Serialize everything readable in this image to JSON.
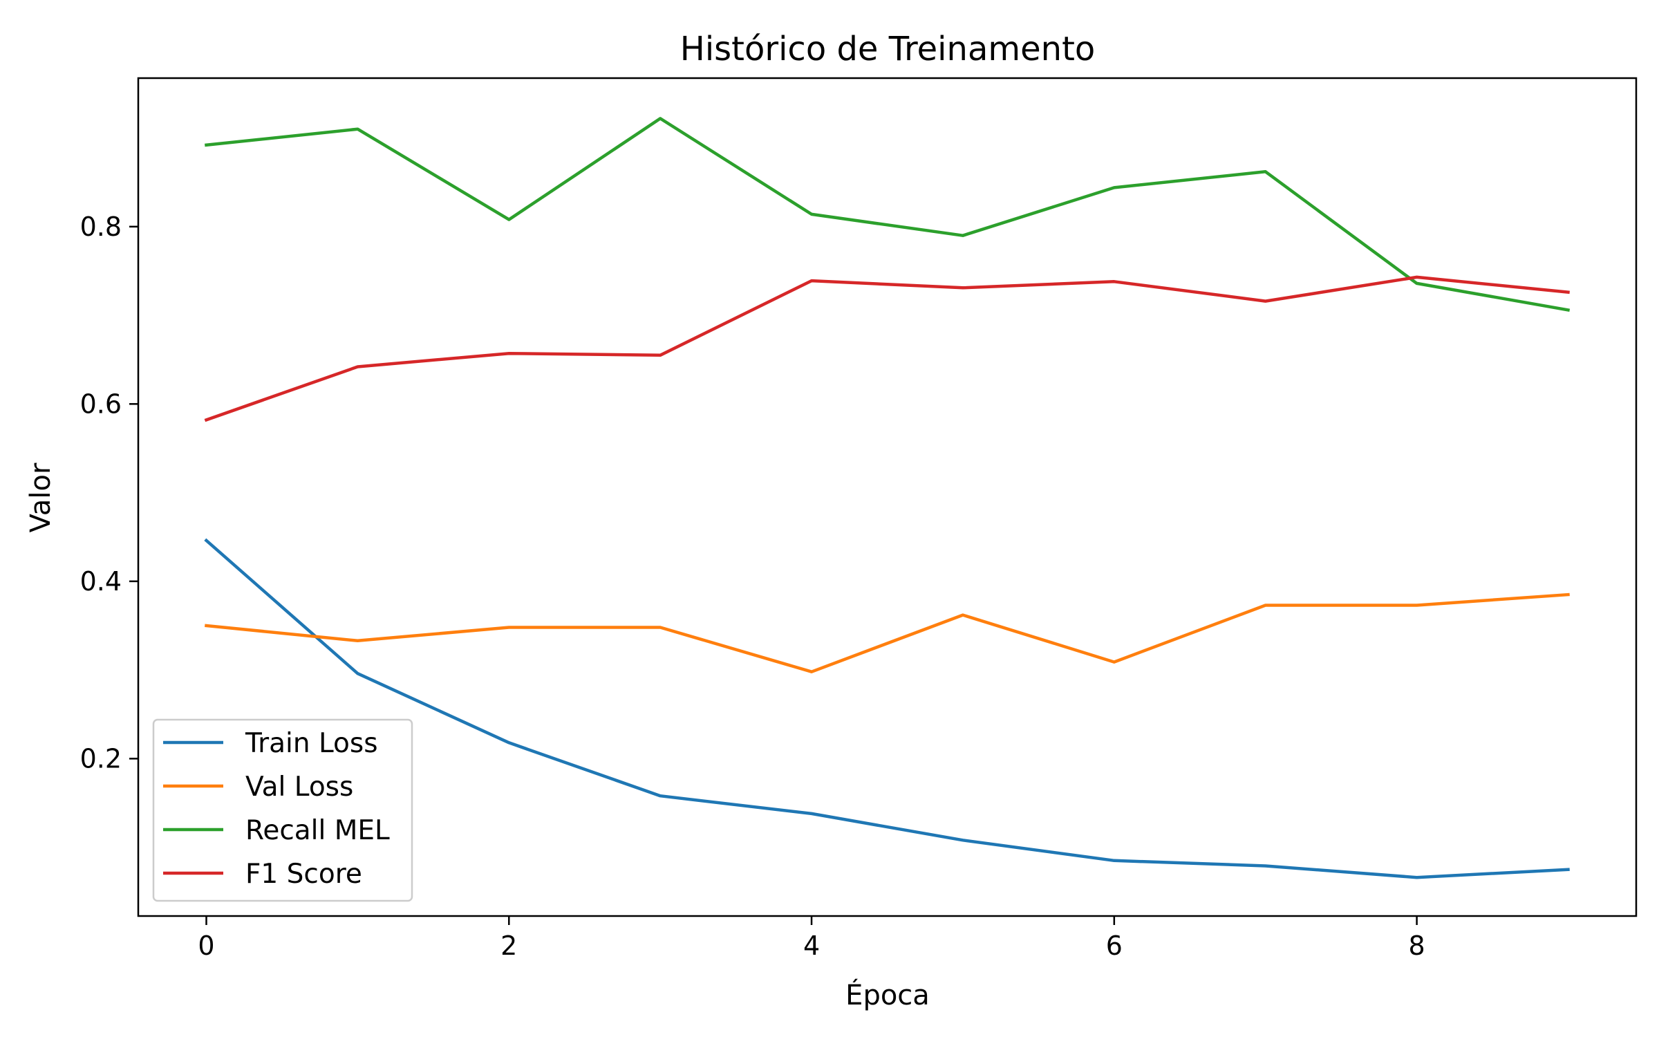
{
  "chart_data": {
    "type": "line",
    "title": "Histórico de Treinamento",
    "xlabel": "Época",
    "ylabel": "Valor",
    "x": [
      0,
      1,
      2,
      3,
      4,
      5,
      6,
      7,
      8,
      9
    ],
    "xlim": [
      -0.45,
      9.45
    ],
    "ylim": [
      0.0225,
      0.9675
    ],
    "xticks": [
      0,
      2,
      4,
      6,
      8
    ],
    "yticks": [
      0.2,
      0.4,
      0.6,
      0.8
    ],
    "xtick_labels": [
      "0",
      "2",
      "4",
      "6",
      "8"
    ],
    "ytick_labels": [
      "0.2",
      "0.4",
      "0.6",
      "0.8"
    ],
    "grid": false,
    "legend_position": "lower-left",
    "series": [
      {
        "name": "Train Loss",
        "color": "#1f77b4",
        "values": [
          0.446,
          0.296,
          0.218,
          0.158,
          0.138,
          0.108,
          0.085,
          0.079,
          0.066,
          0.075
        ]
      },
      {
        "name": "Val Loss",
        "color": "#ff7f0e",
        "values": [
          0.35,
          0.333,
          0.348,
          0.348,
          0.298,
          0.362,
          0.309,
          0.373,
          0.373,
          0.385
        ]
      },
      {
        "name": "Recall MEL",
        "color": "#2ca02c",
        "values": [
          0.892,
          0.91,
          0.808,
          0.922,
          0.814,
          0.79,
          0.844,
          0.862,
          0.736,
          0.706
        ]
      },
      {
        "name": "F1 Score",
        "color": "#d62728",
        "values": [
          0.582,
          0.642,
          0.657,
          0.655,
          0.739,
          0.731,
          0.738,
          0.716,
          0.743,
          0.726
        ]
      }
    ]
  }
}
